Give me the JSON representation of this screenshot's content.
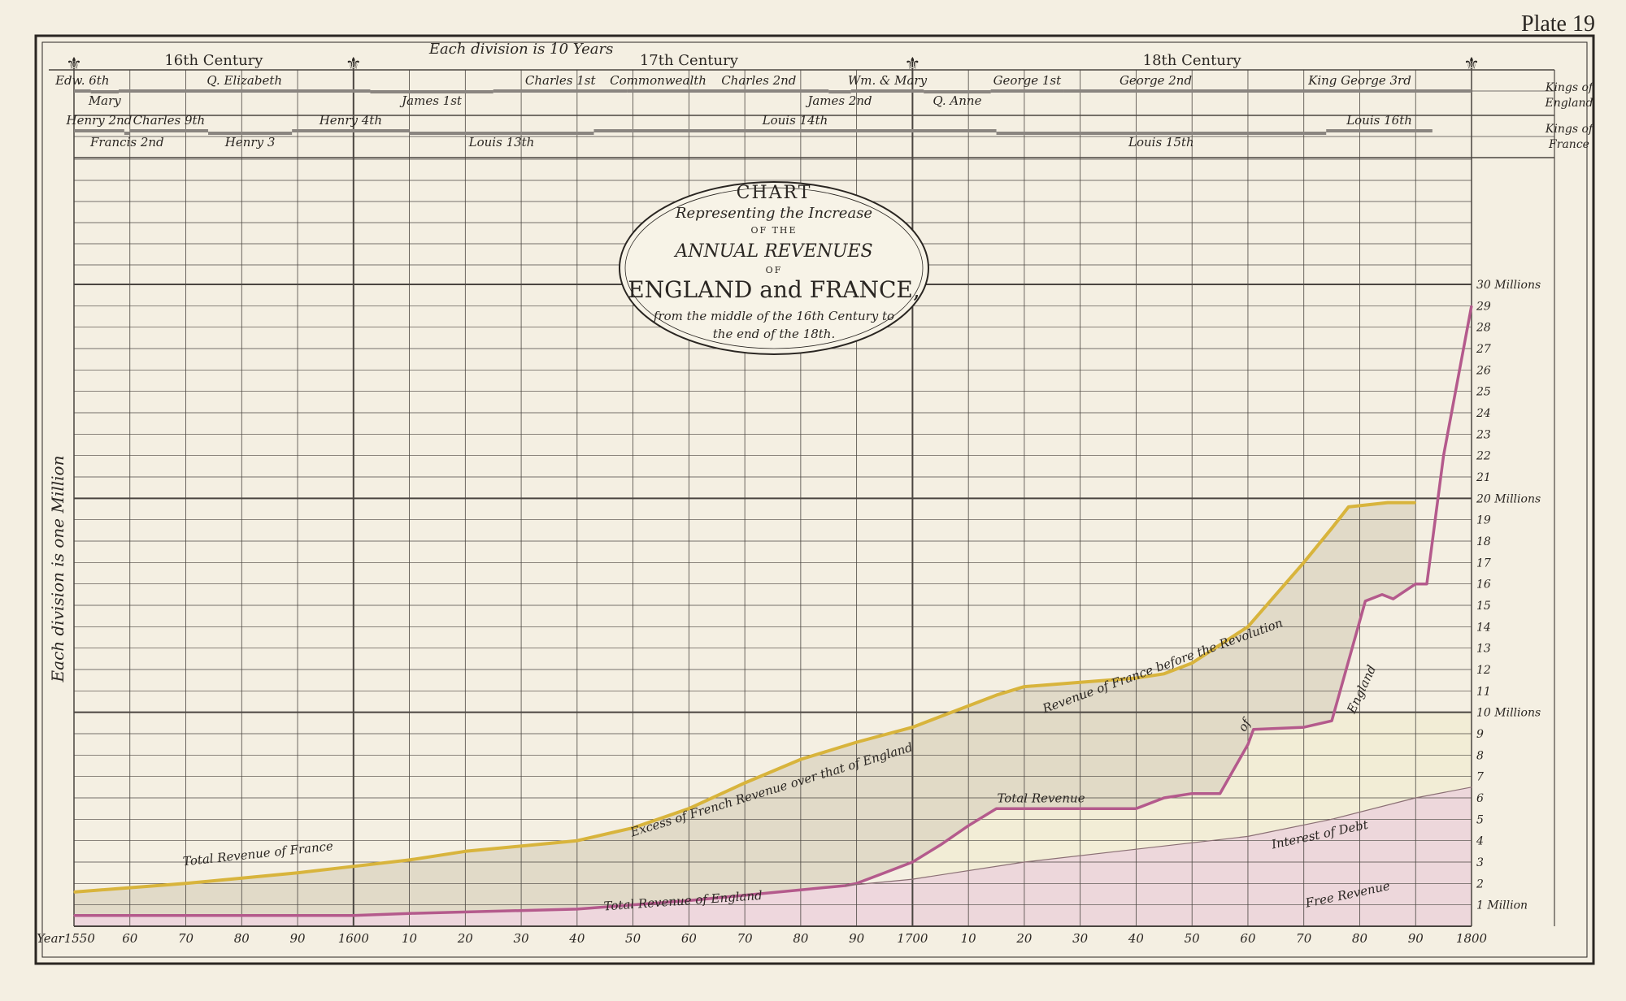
{
  "plate": "Plate 19",
  "header": {
    "centuries": [
      {
        "label": "16th Century",
        "year": 1575
      },
      {
        "label": "17th Century",
        "year": 1660
      },
      {
        "label": "18th Century",
        "year": 1750
      }
    ],
    "division_note": "Each division is 10 Years",
    "y_division_note": "Each division is one Million",
    "kings_england_label": [
      "Kings of",
      "England"
    ],
    "kings_france_label": [
      "Kings of",
      "France"
    ]
  },
  "monarchs": {
    "england": [
      {
        "name": "Edw. 6th",
        "start": 1547,
        "end": 1553,
        "row": 0
      },
      {
        "name": "Mary",
        "start": 1553,
        "end": 1558,
        "row": 1
      },
      {
        "name": "Q. Elizabeth",
        "start": 1558,
        "end": 1603,
        "row": 0
      },
      {
        "name": "James 1st",
        "start": 1603,
        "end": 1625,
        "row": 1
      },
      {
        "name": "Charles 1st",
        "start": 1625,
        "end": 1649,
        "row": 0
      },
      {
        "name": "Commonwealth",
        "start": 1649,
        "end": 1660,
        "row": 0
      },
      {
        "name": "Charles 2nd",
        "start": 1660,
        "end": 1685,
        "row": 0
      },
      {
        "name": "James 2nd",
        "start": 1685,
        "end": 1689,
        "row": 1
      },
      {
        "name": "Wm. & Mary",
        "start": 1689,
        "end": 1702,
        "row": 0
      },
      {
        "name": "Q. Anne",
        "start": 1702,
        "end": 1714,
        "row": 1
      },
      {
        "name": "George 1st",
        "start": 1714,
        "end": 1727,
        "row": 0
      },
      {
        "name": "George 2nd",
        "start": 1727,
        "end": 1760,
        "row": 0
      },
      {
        "name": "King George 3rd",
        "start": 1760,
        "end": 1800,
        "row": 0
      }
    ],
    "france": [
      {
        "name": "Henry 2nd",
        "start": 1547,
        "end": 1559,
        "row": 0
      },
      {
        "name": "Francis 2nd",
        "start": 1559,
        "end": 1560,
        "row": 1
      },
      {
        "name": "Charles 9th",
        "start": 1560,
        "end": 1574,
        "row": 0
      },
      {
        "name": "Henry 3",
        "start": 1574,
        "end": 1589,
        "row": 1
      },
      {
        "name": "Henry 4th",
        "start": 1589,
        "end": 1610,
        "row": 0
      },
      {
        "name": "Louis 13th",
        "start": 1610,
        "end": 1643,
        "row": 1
      },
      {
        "name": "Louis 14th",
        "start": 1643,
        "end": 1715,
        "row": 0
      },
      {
        "name": "Louis 15th",
        "start": 1715,
        "end": 1774,
        "row": 1
      },
      {
        "name": "Louis 16th",
        "start": 1774,
        "end": 1793,
        "row": 0
      }
    ]
  },
  "title_cartouche": {
    "lines": [
      "CHART",
      "Representing the Increase",
      "OF THE",
      "ANNUAL REVENUES",
      "OF",
      "ENGLAND and FRANCE,",
      "from the middle of the 16th Century to",
      "the end of the 18th."
    ]
  },
  "colors": {
    "paper": "#f4efe2",
    "france_line": "#d8b43c",
    "excess_fill": "#dcd5c2",
    "england_line": "#b45a8c",
    "free_revenue_fill": "#ecd2dc",
    "debt_fill": "#f0ebcc",
    "grid": "#4a4540"
  },
  "chart_data": {
    "type": "area",
    "x_range": [
      1550,
      1800
    ],
    "ylim": [
      0,
      30
    ],
    "xlabel_prefix": "Year",
    "x_ticks": [
      "1550",
      "60",
      "70",
      "80",
      "90",
      "1600",
      "10",
      "20",
      "30",
      "40",
      "50",
      "60",
      "70",
      "80",
      "90",
      "1700",
      "10",
      "20",
      "30",
      "40",
      "50",
      "60",
      "70",
      "80",
      "90",
      "1800"
    ],
    "y_ticks": [
      "1 Million",
      "2",
      "3",
      "4",
      "5",
      "6",
      "7",
      "8",
      "9",
      "10 Millions",
      "11",
      "12",
      "13",
      "14",
      "15",
      "16",
      "17",
      "18",
      "19",
      "20 Millions",
      "21",
      "22",
      "23",
      "24",
      "25",
      "26",
      "27",
      "28",
      "29",
      "30 Millions"
    ],
    "annotations": [
      {
        "text": "Total Revenue of France",
        "x": 1583,
        "y": 3.2,
        "angle": -6
      },
      {
        "text": "Excess of French Revenue over that of England",
        "x": 1675,
        "y": 6.2,
        "angle": -17
      },
      {
        "text": "Total Revenue of England",
        "x": 1659,
        "y": 1.0,
        "angle": -4
      },
      {
        "text": "Revenue of France before the Revolution",
        "x": 1745,
        "y": 12.0,
        "angle": -20
      },
      {
        "text": "Total Revenue",
        "x": 1723,
        "y": 5.8,
        "angle": 0
      },
      {
        "text": "Interest of Debt",
        "x": 1773,
        "y": 4.1,
        "angle": -12
      },
      {
        "text": "Free Revenue",
        "x": 1778,
        "y": 1.3,
        "angle": -12
      },
      {
        "text": "of",
        "x": 1760,
        "y": 9.3,
        "angle": -60
      },
      {
        "text": "England",
        "x": 1781,
        "y": 11.0,
        "angle": -65
      }
    ],
    "series": [
      {
        "name": "Total Revenue of France",
        "x": [
          1550,
          1570,
          1590,
          1600,
          1610,
          1620,
          1640,
          1650,
          1660,
          1670,
          1680,
          1690,
          1700,
          1705,
          1710,
          1715,
          1720,
          1730,
          1740,
          1745,
          1750,
          1760,
          1770,
          1775,
          1778,
          1785,
          1790
        ],
        "values": [
          1.6,
          2.0,
          2.5,
          2.8,
          3.1,
          3.5,
          4.0,
          4.6,
          5.5,
          6.7,
          7.8,
          8.6,
          9.3,
          9.8,
          10.3,
          10.8,
          11.2,
          11.4,
          11.6,
          11.8,
          12.3,
          14.0,
          17.0,
          18.6,
          19.6,
          19.8,
          19.8
        ]
      },
      {
        "name": "Total Revenue of England",
        "x": [
          1550,
          1560,
          1580,
          1600,
          1610,
          1640,
          1660,
          1680,
          1688,
          1690,
          1695,
          1700,
          1705,
          1710,
          1715,
          1720,
          1730,
          1740,
          1745,
          1750,
          1755,
          1760,
          1761,
          1770,
          1775,
          1781,
          1784,
          1786,
          1790,
          1792,
          1795,
          1800
        ],
        "values": [
          0.5,
          0.5,
          0.5,
          0.5,
          0.6,
          0.8,
          1.2,
          1.7,
          1.9,
          2.0,
          2.5,
          3.0,
          3.8,
          4.7,
          5.5,
          5.5,
          5.5,
          5.5,
          6.0,
          6.2,
          6.2,
          8.5,
          9.2,
          9.3,
          9.6,
          15.2,
          15.5,
          15.3,
          16.0,
          16.0,
          22.0,
          29.0
        ]
      },
      {
        "name": "Interest of Debt",
        "x": [
          1688,
          1700,
          1720,
          1740,
          1760,
          1775,
          1790,
          1800
        ],
        "values": [
          1.9,
          2.2,
          3.0,
          3.6,
          4.2,
          5.0,
          6.0,
          6.5
        ]
      }
    ]
  }
}
